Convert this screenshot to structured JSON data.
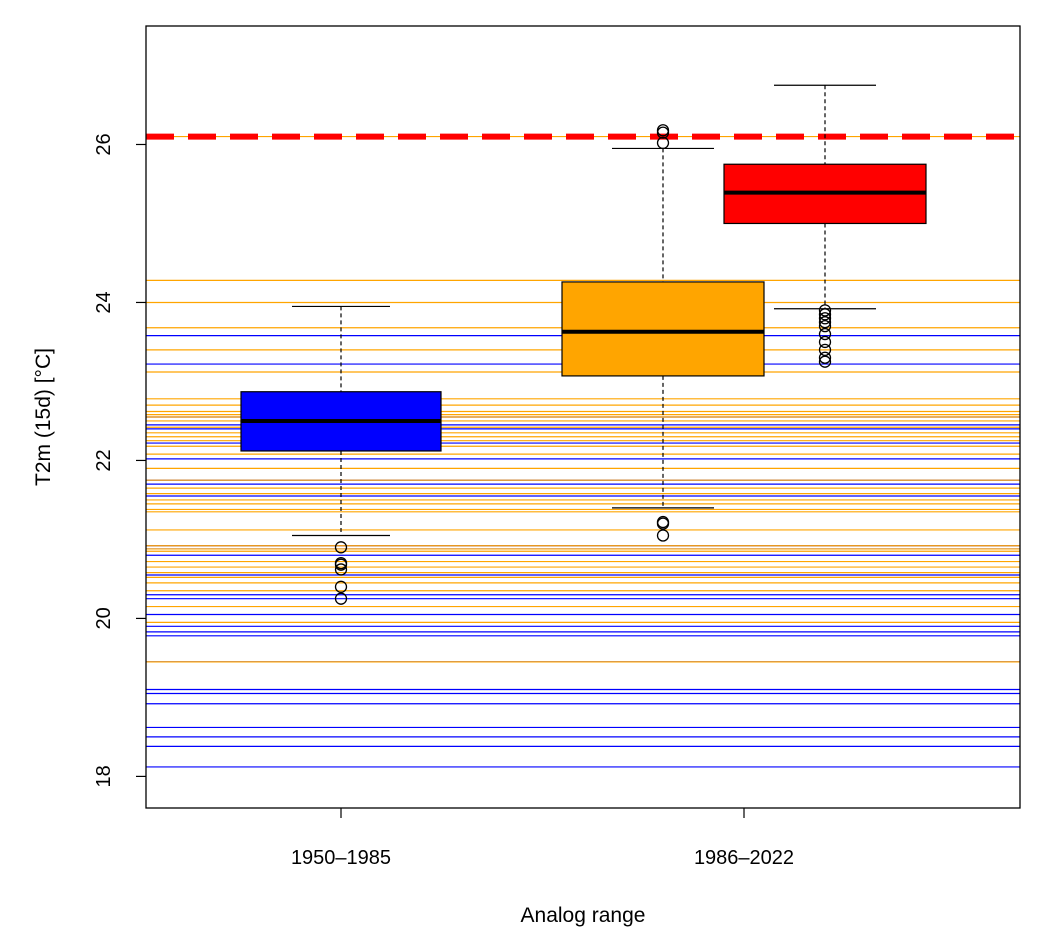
{
  "chart_data": {
    "type": "boxplot",
    "title": "",
    "xlabel": "Analog range",
    "ylabel": "T2m (15d) [°C]",
    "ylim": [
      17.6,
      27.5
    ],
    "y_ticks": [
      18,
      20,
      22,
      24,
      26
    ],
    "y_tick_labels": [
      "18",
      "20",
      "22",
      "24",
      "26"
    ],
    "grid": false,
    "categories": [
      "1950–1985",
      "1986–2022"
    ],
    "reference_line": {
      "value": 26.1,
      "color": "#ff0000",
      "style": "dashed"
    },
    "boxes": [
      {
        "category": "1950–1985",
        "color": "#0000ff",
        "whisker_low": 21.05,
        "q1": 22.12,
        "median": 22.5,
        "q3": 22.87,
        "whisker_high": 23.95,
        "outliers": [
          20.9,
          20.7,
          20.68,
          20.62,
          20.4,
          20.25
        ]
      },
      {
        "category": "1986–2022",
        "color": "#ffa500",
        "whisker_low": 21.4,
        "q1": 23.07,
        "median": 23.63,
        "q3": 24.26,
        "whisker_high": 25.95,
        "outliers": [
          21.22,
          21.2,
          21.05,
          26.02,
          26.15,
          26.18
        ]
      },
      {
        "category": "1986–2022",
        "color": "#ff0000",
        "whisker_low": 23.92,
        "q1": 25.0,
        "median": 25.39,
        "q3": 25.75,
        "whisker_high": 26.75,
        "outliers": [
          23.9,
          23.85,
          23.8,
          23.75,
          23.7,
          23.6,
          23.5,
          23.4,
          23.3,
          23.25
        ]
      }
    ],
    "analog_lines": [
      {
        "color": "#0000ff",
        "values": [
          18.12,
          18.38,
          18.5,
          18.62,
          18.92,
          19.05,
          19.1,
          19.45,
          19.78,
          19.83,
          19.9,
          20.05,
          20.25,
          20.3,
          20.55,
          20.8,
          20.88,
          20.92,
          21.55,
          21.7,
          21.75,
          22.02,
          22.22,
          22.4,
          22.45,
          22.55,
          23.22,
          23.58
        ]
      },
      {
        "color": "#ffa500",
        "values": [
          19.45,
          19.95,
          20.15,
          20.35,
          20.45,
          20.52,
          20.58,
          20.65,
          20.72,
          20.85,
          20.88,
          20.92,
          21.12,
          21.35,
          21.38,
          21.45,
          21.5,
          21.58,
          21.65,
          21.75,
          21.9,
          22.08,
          22.18,
          22.25,
          22.3,
          22.35,
          22.42,
          22.5,
          22.55,
          22.58,
          22.62,
          22.7,
          22.78,
          23.12,
          23.4,
          23.68,
          24.0,
          24.28,
          26.1
        ]
      }
    ]
  }
}
